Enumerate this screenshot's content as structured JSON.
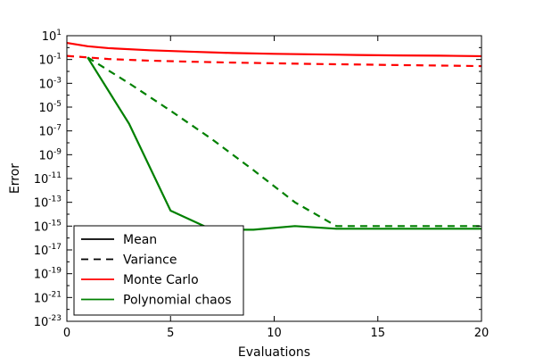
{
  "chart_data": {
    "type": "line",
    "xlabel": "Evaluations",
    "ylabel": "Error",
    "xlim": [
      0,
      20
    ],
    "ylim_log10": [
      -23,
      1
    ],
    "yscale": "log",
    "x_ticks": [
      0,
      5,
      10,
      15,
      20
    ],
    "y_tick_exponents": [
      1,
      -1,
      -3,
      -5,
      -7,
      -9,
      -11,
      -13,
      -15,
      -17,
      -19,
      -21,
      -23
    ],
    "y_tick_base": "10",
    "grid": false,
    "legend_position": "lower-left",
    "legend": [
      {
        "label": "Mean",
        "style": "solid",
        "color": "#000000"
      },
      {
        "label": "Variance",
        "style": "dashed",
        "color": "#000000"
      },
      {
        "label": "Monte Carlo",
        "style": "solid",
        "color": "#ff0000"
      },
      {
        "label": "Polynomial chaos",
        "style": "solid",
        "color": "#008000"
      }
    ],
    "series": [
      {
        "method": "Monte Carlo",
        "stat": "Mean",
        "color": "#ff0000",
        "style": "solid",
        "x": [
          0,
          1,
          2,
          4,
          6,
          8,
          10,
          12,
          14,
          16,
          18,
          20
        ],
        "y": [
          2.5,
          1.3,
          0.9,
          0.6,
          0.45,
          0.35,
          0.3,
          0.27,
          0.24,
          0.22,
          0.21,
          0.19
        ]
      },
      {
        "method": "Monte Carlo",
        "stat": "Variance",
        "color": "#ff0000",
        "style": "dashed",
        "x": [
          0,
          1,
          2,
          4,
          6,
          8,
          10,
          12,
          14,
          16,
          18,
          20
        ],
        "y": [
          0.2,
          0.15,
          0.11,
          0.08,
          0.065,
          0.055,
          0.048,
          0.042,
          0.038,
          0.034,
          0.031,
          0.028
        ]
      },
      {
        "method": "Polynomial chaos",
        "stat": "Mean",
        "color": "#008000",
        "style": "solid",
        "x": [
          1,
          3,
          5,
          7,
          9,
          11,
          13,
          15,
          17,
          19,
          20
        ],
        "y": [
          0.15,
          4e-07,
          2e-14,
          5e-16,
          5e-16,
          1e-15,
          6e-16,
          6e-16,
          6e-16,
          6e-16,
          6e-16
        ]
      },
      {
        "method": "Polynomial chaos",
        "stat": "Variance",
        "color": "#008000",
        "style": "dashed",
        "x": [
          1,
          3,
          5,
          7,
          9,
          11,
          13,
          15,
          17,
          19,
          20
        ],
        "y": [
          0.15,
          0.001,
          5e-06,
          2e-08,
          5e-11,
          1e-13,
          1e-15,
          1e-15,
          1e-15,
          1e-15,
          1e-15
        ]
      }
    ]
  }
}
